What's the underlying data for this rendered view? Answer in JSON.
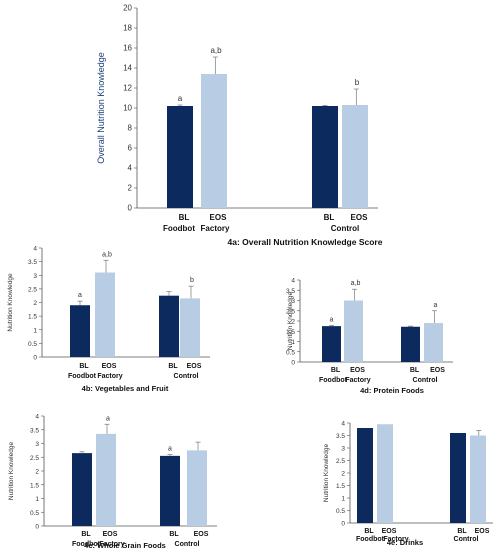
{
  "colors": {
    "bl": "#0d2a5e",
    "eos": "#b8cce4",
    "axis": "#555555",
    "ylabel_main": "#1f3f7a"
  },
  "chart_data": [
    {
      "id": "4a",
      "type": "bar",
      "title": "4a: Overall Nutrition Knowledge Score",
      "ylabel": "Overall Nutrition Knowledge",
      "ylim": [
        0,
        20
      ],
      "yticks": [
        0,
        2,
        4,
        6,
        8,
        10,
        12,
        14,
        16,
        18,
        20
      ],
      "bars": [
        {
          "name": "BL",
          "group": "Foodbot",
          "value": 10.2,
          "err": 0.1,
          "sig": "a",
          "series": "bl"
        },
        {
          "name": "EOS",
          "group": "Factory",
          "value": 13.4,
          "err": 1.7,
          "sig": "a,b",
          "series": "eos"
        },
        {
          "name": "BL",
          "group": "Control",
          "value": 10.2,
          "err": 0.05,
          "sig": "",
          "series": "bl"
        },
        {
          "name": "EOS",
          "group": "",
          "value": 10.3,
          "err": 1.6,
          "sig": "b",
          "series": "eos"
        }
      ],
      "group_labels": [
        "Foodbot",
        "Factory",
        "Control"
      ]
    },
    {
      "id": "4b",
      "type": "bar",
      "title": "4b: Vegetables and Fruit",
      "ylabel": "Nutrition Knowledge",
      "ylim": [
        0,
        4
      ],
      "yticks": [
        0,
        0.5,
        1,
        1.5,
        2,
        2.5,
        3,
        3.5,
        4
      ],
      "bars": [
        {
          "name": "BL",
          "value": 1.9,
          "err": 0.15,
          "sig": "a",
          "series": "bl"
        },
        {
          "name": "EOS",
          "value": 3.1,
          "err": 0.45,
          "sig": "a,b",
          "series": "eos"
        },
        {
          "name": "BL",
          "value": 2.25,
          "err": 0.15,
          "sig": "",
          "series": "bl"
        },
        {
          "name": "EOS",
          "value": 2.15,
          "err": 0.45,
          "sig": "b",
          "series": "eos"
        }
      ],
      "group_labels": [
        "Foodbot",
        "Factory",
        "Control"
      ]
    },
    {
      "id": "4d",
      "type": "bar",
      "title": "4d: Protein Foods",
      "ylabel": "Nutrition Knowledge",
      "ylim": [
        0,
        4
      ],
      "yticks": [
        0,
        0.5,
        1,
        1.5,
        2,
        2.5,
        3,
        3.5,
        4
      ],
      "bars": [
        {
          "name": "BL",
          "value": 1.75,
          "err": 0.03,
          "sig": "a",
          "series": "bl"
        },
        {
          "name": "EOS",
          "value": 3.0,
          "err": 0.55,
          "sig": "a,b",
          "series": "eos"
        },
        {
          "name": "BL",
          "value": 1.72,
          "err": 0.03,
          "sig": "",
          "series": "bl"
        },
        {
          "name": "EOS",
          "value": 1.9,
          "err": 0.6,
          "sig": "a",
          "series": "eos"
        }
      ],
      "group_labels": [
        "Foodbot",
        "Factory",
        "Control"
      ]
    },
    {
      "id": "4c",
      "type": "bar",
      "title": "4c: Whole Grain Foods",
      "ylabel": "Nutrition Knowledge",
      "ylim": [
        0,
        4
      ],
      "yticks": [
        0,
        0.5,
        1,
        1.5,
        2,
        2.5,
        3,
        3.5,
        4
      ],
      "bars": [
        {
          "name": "BL",
          "value": 2.65,
          "err": 0.05,
          "sig": "",
          "series": "bl"
        },
        {
          "name": "EOS",
          "value": 3.35,
          "err": 0.35,
          "sig": "a",
          "series": "eos"
        },
        {
          "name": "BL",
          "value": 2.55,
          "err": 0.05,
          "sig": "a",
          "series": "bl"
        },
        {
          "name": "EOS",
          "value": 2.75,
          "err": 0.3,
          "sig": "",
          "series": "eos"
        }
      ],
      "group_labels": [
        "Foodbot",
        "Factory",
        "Control"
      ]
    },
    {
      "id": "4e",
      "type": "bar",
      "title": "4e: Drinks",
      "ylabel": "Nutrition Knowledge",
      "ylim": [
        0,
        4
      ],
      "yticks": [
        0,
        0.5,
        1,
        1.5,
        2,
        2.5,
        3,
        3.5,
        4
      ],
      "bars": [
        {
          "name": "BL",
          "value": 3.8,
          "err": 0,
          "sig": "",
          "series": "bl"
        },
        {
          "name": "EOS",
          "value": 3.95,
          "err": 0,
          "sig": "",
          "series": "eos"
        },
        {
          "name": "BL",
          "value": 3.6,
          "err": 0,
          "sig": "",
          "series": "bl"
        },
        {
          "name": "EOS",
          "value": 3.5,
          "err": 0.2,
          "sig": "",
          "series": "eos"
        }
      ],
      "group_labels": [
        "Foodbot",
        "Factory",
        "Control"
      ]
    }
  ]
}
